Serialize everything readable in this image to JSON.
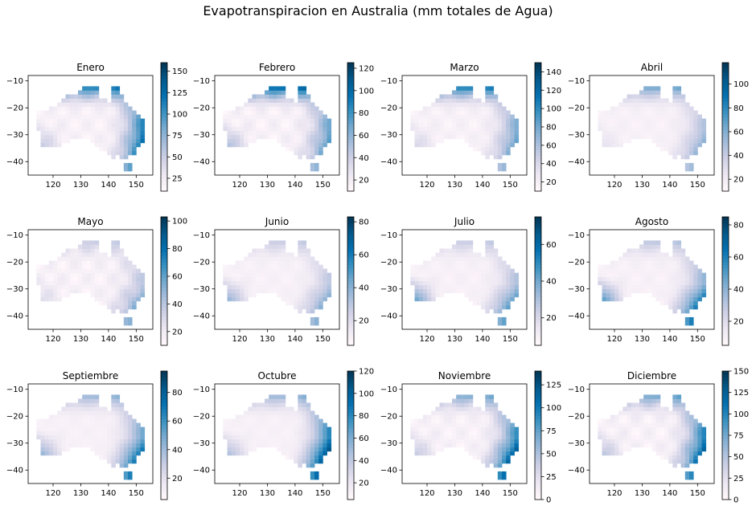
{
  "title": "Evapotranspiracion en Australia (mm totales de Agua)",
  "colormap": [
    "#fff7fb",
    "#ece7f2",
    "#d0d1e6",
    "#a6bddb",
    "#74a9cf",
    "#3690c0",
    "#0570b0",
    "#045a8d",
    "#023858"
  ],
  "chart_data": [
    {
      "type": "heatmap",
      "title": "Enero",
      "xlim": [
        111,
        156
      ],
      "ylim": [
        -45,
        -8
      ],
      "xticks": [
        "120",
        "130",
        "140",
        "150"
      ],
      "yticks": [
        "-10",
        "-20",
        "-30",
        "-40"
      ],
      "colorbar": {
        "min": 10,
        "max": 160,
        "ticks": [
          "25",
          "50",
          "75",
          "100",
          "125",
          "150"
        ]
      },
      "pattern": {
        "north": 1.0,
        "east": 0.75,
        "south": 0.25,
        "west": 0.35,
        "center": 0.3
      }
    },
    {
      "type": "heatmap",
      "title": "Febrero",
      "xlim": [
        111,
        156
      ],
      "ylim": [
        -45,
        -8
      ],
      "xticks": [
        "120",
        "130",
        "140",
        "150"
      ],
      "yticks": [
        "-10",
        "-20",
        "-30",
        "-40"
      ],
      "colorbar": {
        "min": 10,
        "max": 125,
        "ticks": [
          "20",
          "40",
          "60",
          "80",
          "100",
          "120"
        ]
      },
      "pattern": {
        "north": 1.15,
        "east": 0.55,
        "south": 0.2,
        "west": 0.45,
        "center": 0.35
      }
    },
    {
      "type": "heatmap",
      "title": "Marzo",
      "xlim": [
        111,
        156
      ],
      "ylim": [
        -45,
        -8
      ],
      "xticks": [
        "120",
        "130",
        "140",
        "150"
      ],
      "yticks": [
        "-10",
        "-20",
        "-30",
        "-40"
      ],
      "colorbar": {
        "min": 10,
        "max": 150,
        "ticks": [
          "20",
          "40",
          "60",
          "80",
          "100",
          "120",
          "140"
        ]
      },
      "pattern": {
        "north": 1.0,
        "east": 0.5,
        "south": 0.2,
        "west": 0.25,
        "center": 0.25
      }
    },
    {
      "type": "heatmap",
      "title": "Abril",
      "xlim": [
        111,
        156
      ],
      "ylim": [
        -45,
        -8
      ],
      "xticks": [
        "120",
        "130",
        "140",
        "150"
      ],
      "yticks": [
        "-10",
        "-20",
        "-30",
        "-40"
      ],
      "colorbar": {
        "min": 10,
        "max": 118,
        "ticks": [
          "20",
          "40",
          "60",
          "80",
          "100"
        ]
      },
      "pattern": {
        "north": 0.7,
        "east": 0.35,
        "south": 0.25,
        "west": 0.15,
        "center": 0.15
      }
    },
    {
      "type": "heatmap",
      "title": "Mayo",
      "xlim": [
        111,
        156
      ],
      "ylim": [
        -45,
        -8
      ],
      "xticks": [
        "120",
        "130",
        "140",
        "150"
      ],
      "yticks": [
        "-10",
        "-20",
        "-30",
        "-40"
      ],
      "colorbar": {
        "min": 10,
        "max": 103,
        "ticks": [
          "20",
          "40",
          "60",
          "80",
          "100"
        ]
      },
      "pattern": {
        "north": 0.35,
        "east": 0.3,
        "south": 0.35,
        "west": 0.2,
        "center": 0.35
      }
    },
    {
      "type": "heatmap",
      "title": "Junio",
      "xlim": [
        111,
        156
      ],
      "ylim": [
        -45,
        -8
      ],
      "xticks": [
        "120",
        "130",
        "140",
        "150"
      ],
      "yticks": [
        "-10",
        "-20",
        "-30",
        "-40"
      ],
      "colorbar": {
        "min": 5,
        "max": 83,
        "ticks": [
          "20",
          "40",
          "60",
          "80"
        ]
      },
      "pattern": {
        "north": 0.35,
        "east": 0.3,
        "south": 0.35,
        "west": 0.55,
        "center": 0.15
      }
    },
    {
      "type": "heatmap",
      "title": "Julio",
      "xlim": [
        111,
        156
      ],
      "ylim": [
        -45,
        -8
      ],
      "xticks": [
        "120",
        "130",
        "140",
        "150"
      ],
      "yticks": [
        "-10",
        "-20",
        "-30",
        "-40"
      ],
      "colorbar": {
        "min": 5,
        "max": 75,
        "ticks": [
          "20",
          "40",
          "60"
        ]
      },
      "pattern": {
        "north": 0.35,
        "east": 0.35,
        "south": 0.45,
        "west": 0.7,
        "center": 0.15
      }
    },
    {
      "type": "heatmap",
      "title": "Agosto",
      "xlim": [
        111,
        156
      ],
      "ylim": [
        -45,
        -8
      ],
      "xticks": [
        "120",
        "130",
        "140",
        "150"
      ],
      "yticks": [
        "-10",
        "-20",
        "-30",
        "-40"
      ],
      "colorbar": {
        "min": 5,
        "max": 85,
        "ticks": [
          "20",
          "40",
          "60",
          "80"
        ]
      },
      "pattern": {
        "north": 0.4,
        "east": 0.45,
        "south": 0.6,
        "west": 0.75,
        "center": 0.15
      }
    },
    {
      "type": "heatmap",
      "title": "Septiembre",
      "xlim": [
        111,
        156
      ],
      "ylim": [
        -45,
        -8
      ],
      "xticks": [
        "120",
        "130",
        "140",
        "150"
      ],
      "yticks": [
        "-10",
        "-20",
        "-30",
        "-40"
      ],
      "colorbar": {
        "min": 5,
        "max": 95,
        "ticks": [
          "20",
          "40",
          "60",
          "80"
        ]
      },
      "pattern": {
        "north": 0.55,
        "east": 0.55,
        "south": 0.55,
        "west": 0.55,
        "center": 0.1
      }
    },
    {
      "type": "heatmap",
      "title": "Octubre",
      "xlim": [
        111,
        156
      ],
      "ylim": [
        -45,
        -8
      ],
      "xticks": [
        "120",
        "130",
        "140",
        "150"
      ],
      "yticks": [
        "-10",
        "-20",
        "-30",
        "-40"
      ],
      "colorbar": {
        "min": 5,
        "max": 120,
        "ticks": [
          "20",
          "40",
          "60",
          "80",
          "100",
          "120"
        ]
      },
      "pattern": {
        "north": 0.55,
        "east": 0.75,
        "south": 0.55,
        "west": 0.45,
        "center": 0.1
      }
    },
    {
      "type": "heatmap",
      "title": "Noviembre",
      "xlim": [
        111,
        156
      ],
      "ylim": [
        -45,
        -8
      ],
      "xticks": [
        "120",
        "130",
        "140",
        "150"
      ],
      "yticks": [
        "-10",
        "-20",
        "-30",
        "-40"
      ],
      "colorbar": {
        "min": 0,
        "max": 140,
        "ticks": [
          "0",
          "25",
          "50",
          "75",
          "100",
          "125"
        ]
      },
      "pattern": {
        "north": 0.65,
        "east": 0.7,
        "south": 0.55,
        "west": 0.35,
        "center": 0.3
      }
    },
    {
      "type": "heatmap",
      "title": "Diciembre",
      "xlim": [
        111,
        156
      ],
      "ylim": [
        -45,
        -8
      ],
      "xticks": [
        "120",
        "130",
        "140",
        "150"
      ],
      "yticks": [
        "-10",
        "-20",
        "-30",
        "-40"
      ],
      "colorbar": {
        "min": 0,
        "max": 150,
        "ticks": [
          "0",
          "25",
          "50",
          "75",
          "100",
          "125",
          "150"
        ]
      },
      "pattern": {
        "north": 0.7,
        "east": 0.75,
        "south": 0.4,
        "west": 0.4,
        "center": 0.35
      }
    }
  ]
}
